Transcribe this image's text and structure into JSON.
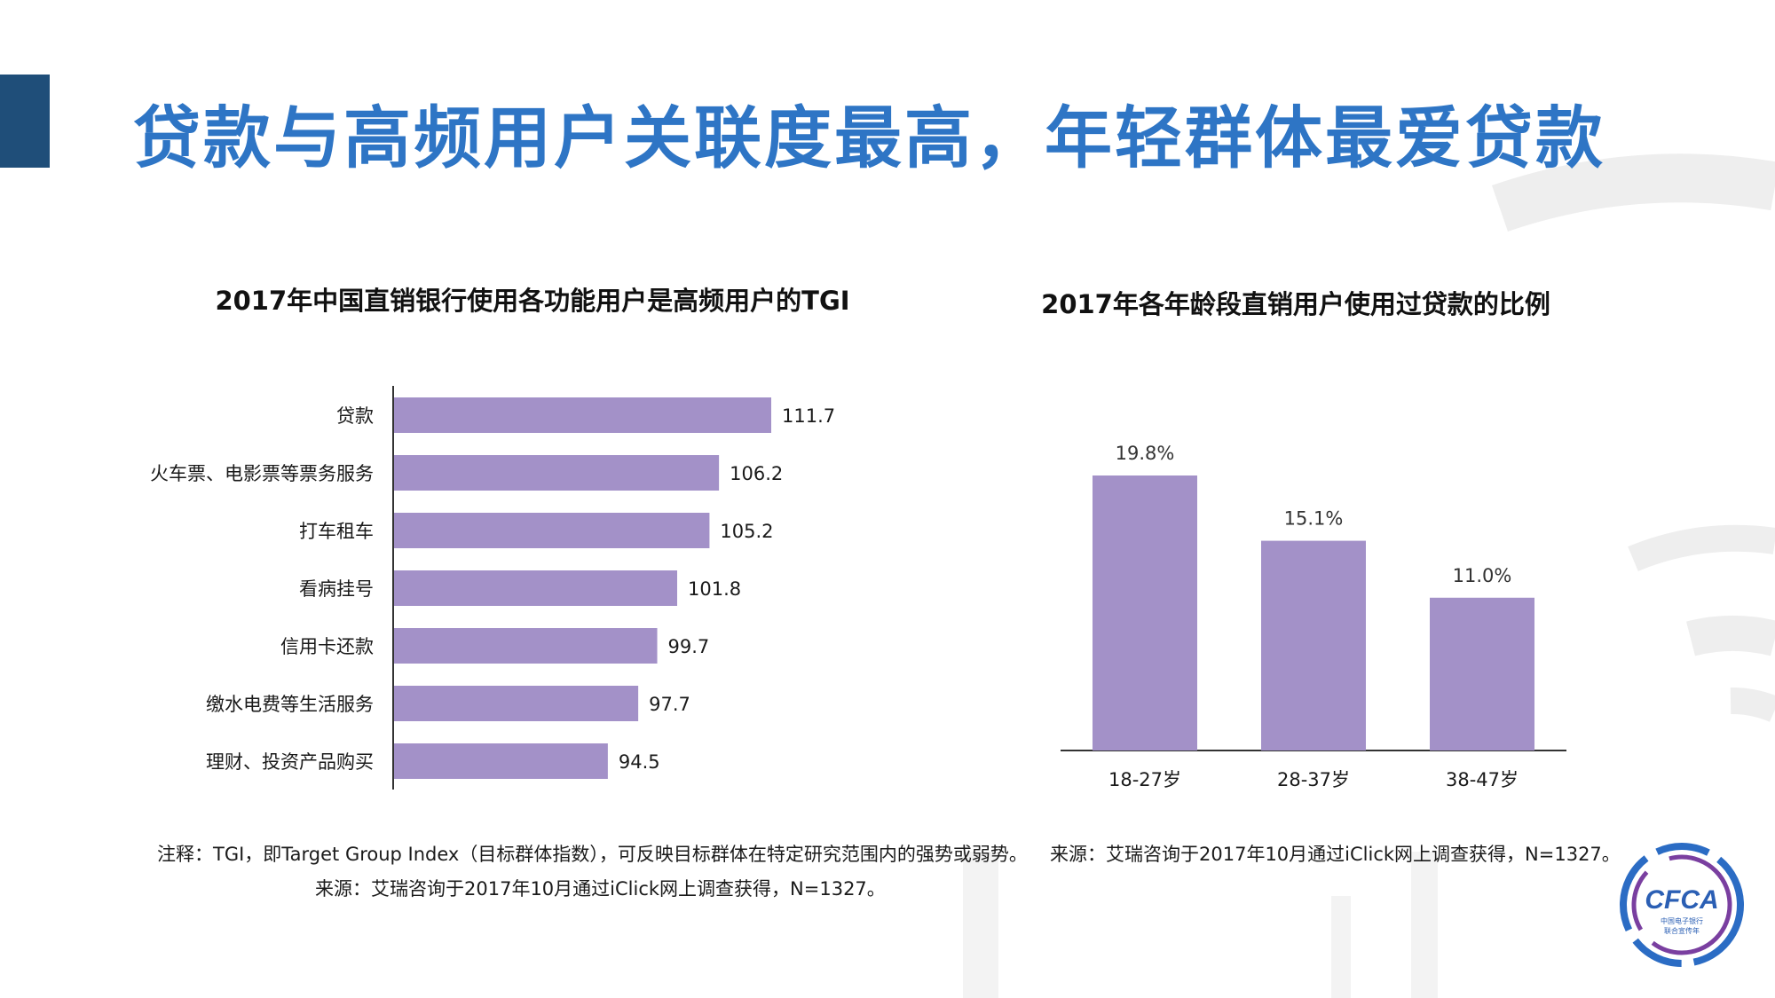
{
  "page": {
    "title": "贷款与高频用户关联度最高，年轻群体最爱贷款",
    "accent_color": "#1f4e79",
    "title_color": "#2e75c5",
    "bar_color": "#a391c8"
  },
  "chart_data": [
    {
      "type": "bar",
      "orientation": "horizontal",
      "title": "2017年中国直销银行使用各功能用户是高频用户的TGI",
      "categories": [
        "贷款",
        "火车票、电影票等票务服务",
        "打车租车",
        "看病挂号",
        "信用卡还款",
        "缴水电费等生活服务",
        "理财、投资产品购买"
      ],
      "values": [
        111.7,
        106.2,
        105.2,
        101.8,
        99.7,
        97.7,
        94.5
      ],
      "value_labels": [
        "111.7",
        "106.2",
        "105.2",
        "101.8",
        "99.7",
        "97.7",
        "94.5"
      ],
      "xlim": [
        72,
        115
      ],
      "grid": false,
      "legend": "none"
    },
    {
      "type": "bar",
      "orientation": "vertical",
      "title": "2017年各年龄段直销用户使用过贷款的比例",
      "categories": [
        "18-27岁",
        "28-37岁",
        "38-47岁"
      ],
      "values": [
        19.8,
        15.1,
        11.0
      ],
      "value_labels": [
        "19.8%",
        "15.1%",
        "11.0%"
      ],
      "ylim": [
        0,
        24
      ],
      "grid": false,
      "legend": "none"
    }
  ],
  "notes": {
    "tgi": "注释：TGI，即Target Group Index（目标群体指数），可反映目标群体在特定研究范围内的强势或弱势。",
    "source_left": "来源：艾瑞咨询于2017年10月通过iClick网上调查获得，N=1327。",
    "source_right": "来源：艾瑞咨询于2017年10月通过iClick网上调查获得，N=1327。"
  },
  "logo": {
    "text": "CFCA",
    "subtitle_line1": "中国电子银行",
    "subtitle_line2": "联合宣传年"
  }
}
